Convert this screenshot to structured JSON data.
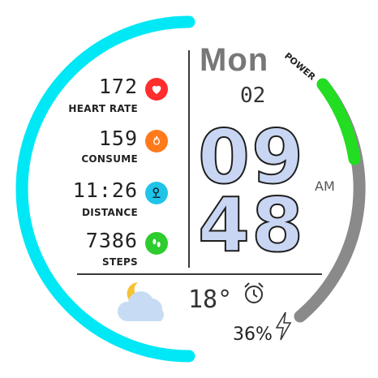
{
  "left_ring": {
    "color": "#00e8f5"
  },
  "power": {
    "label": "POWER",
    "level_percent": 36,
    "color_fill": "#22dd22",
    "color_track": "#8a8a8a"
  },
  "stats": [
    {
      "value": "172",
      "label": "HEART RATE",
      "icon": "heart-icon",
      "color": "#ff2d2d"
    },
    {
      "value": "159",
      "label": "CONSUME",
      "icon": "flame-icon",
      "color": "#ff7a1a"
    },
    {
      "value": "11:26",
      "label": "DISTANCE",
      "icon": "location-pin-icon",
      "color": "#1fc4e8"
    },
    {
      "value": "7386",
      "label": "STEPS",
      "icon": "footprints-icon",
      "color": "#2ecc2e"
    }
  ],
  "date": {
    "day": "Mon",
    "date": "02"
  },
  "time": {
    "hours": "09",
    "minutes": "48",
    "ampm": "AM"
  },
  "weather": {
    "temperature": "18°",
    "icon": "partly-cloudy-night-icon"
  },
  "alarm": {
    "icon": "alarm-clock-icon"
  },
  "battery": {
    "percent": "36%",
    "icon": "lightning-icon"
  }
}
